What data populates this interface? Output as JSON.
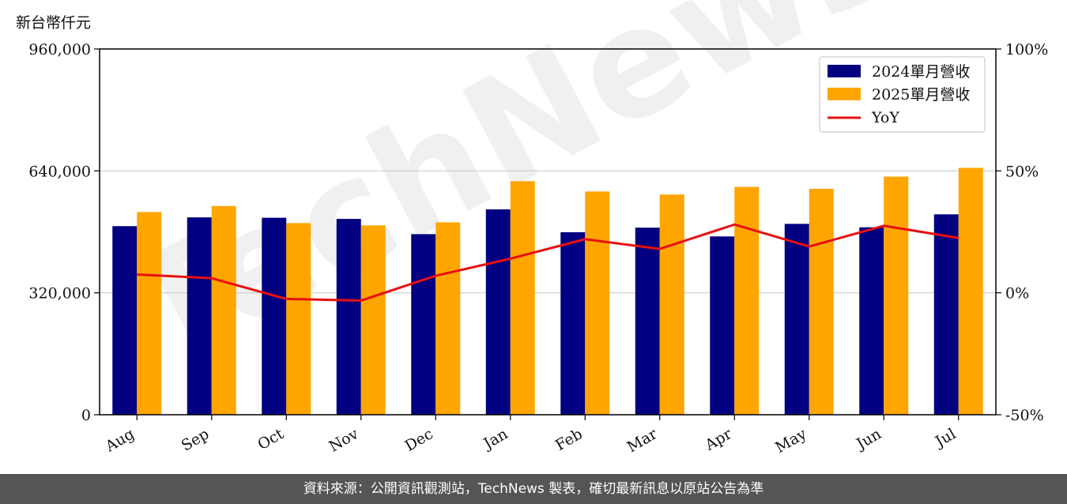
{
  "unit_label": "新台幣仟元",
  "footer_text": "資料來源：公開資訊觀測站，TechNews 製表，確切最新訊息以原站公告為準",
  "watermark": "TechNews",
  "colors": {
    "s2024": "#000080",
    "s2025": "#FFA500",
    "yoy": "#E81010",
    "grid": "#cccccc"
  },
  "chart_data": {
    "type": "bar",
    "categories": [
      "Aug",
      "Sep",
      "Oct",
      "Nov",
      "Dec",
      "Jan",
      "Feb",
      "Mar",
      "Apr",
      "May",
      "Jun",
      "Jul"
    ],
    "series": [
      {
        "name": "2024單月營收",
        "values": [
          495000,
          518000,
          517000,
          514000,
          474000,
          539000,
          479000,
          491000,
          468000,
          501000,
          492000,
          526000
        ]
      },
      {
        "name": "2025單月營收",
        "values": [
          532000,
          548000,
          503000,
          497000,
          505000,
          613000,
          586000,
          578000,
          598000,
          593000,
          625000,
          648000
        ]
      },
      {
        "name": "YoY",
        "axis": "right",
        "values": [
          7.5,
          6.0,
          -2.5,
          -3.2,
          7.0,
          14.0,
          22.0,
          18.0,
          28.0,
          19.0,
          27.5,
          22.5
        ]
      }
    ],
    "ylim": [
      0,
      960000
    ],
    "y_ticks": [
      "0",
      "320,000",
      "640,000",
      "960,000"
    ],
    "y2lim": [
      -50,
      100
    ],
    "y2_ticks": [
      "-50%",
      "0%",
      "50%",
      "100%"
    ],
    "grid": "horizontal",
    "legend_position": "top-right"
  }
}
